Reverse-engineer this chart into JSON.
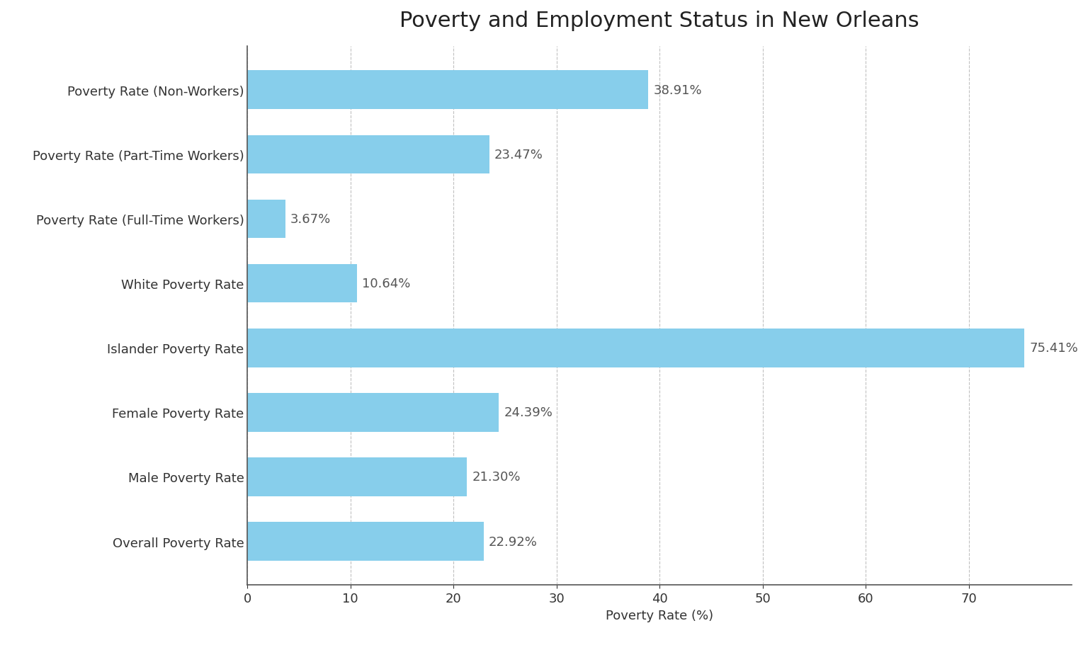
{
  "title": "Poverty and Employment Status in New Orleans",
  "categories": [
    "Poverty Rate (Non-Workers)",
    "Poverty Rate (Part-Time Workers)",
    "Poverty Rate (Full-Time Workers)",
    "White Poverty Rate",
    "Islander Poverty Rate",
    "Female Poverty Rate",
    "Male Poverty Rate",
    "Overall Poverty Rate"
  ],
  "values": [
    38.91,
    23.47,
    3.67,
    10.64,
    75.41,
    24.39,
    21.3,
    22.92
  ],
  "labels": [
    "38.91%",
    "23.47%",
    "3.67%",
    "10.64%",
    "75.41%",
    "24.39%",
    "21.30%",
    "22.92%"
  ],
  "bar_color": "#87CEEB",
  "background_color": "#ffffff",
  "xlabel": "Poverty Rate (%)",
  "xlim": [
    0,
    80
  ],
  "xticks": [
    0,
    10,
    20,
    30,
    40,
    50,
    60,
    70
  ],
  "title_fontsize": 22,
  "label_fontsize": 13,
  "tick_fontsize": 13,
  "value_label_fontsize": 13,
  "grid_color": "#bbbbbb",
  "spine_color": "#555555"
}
